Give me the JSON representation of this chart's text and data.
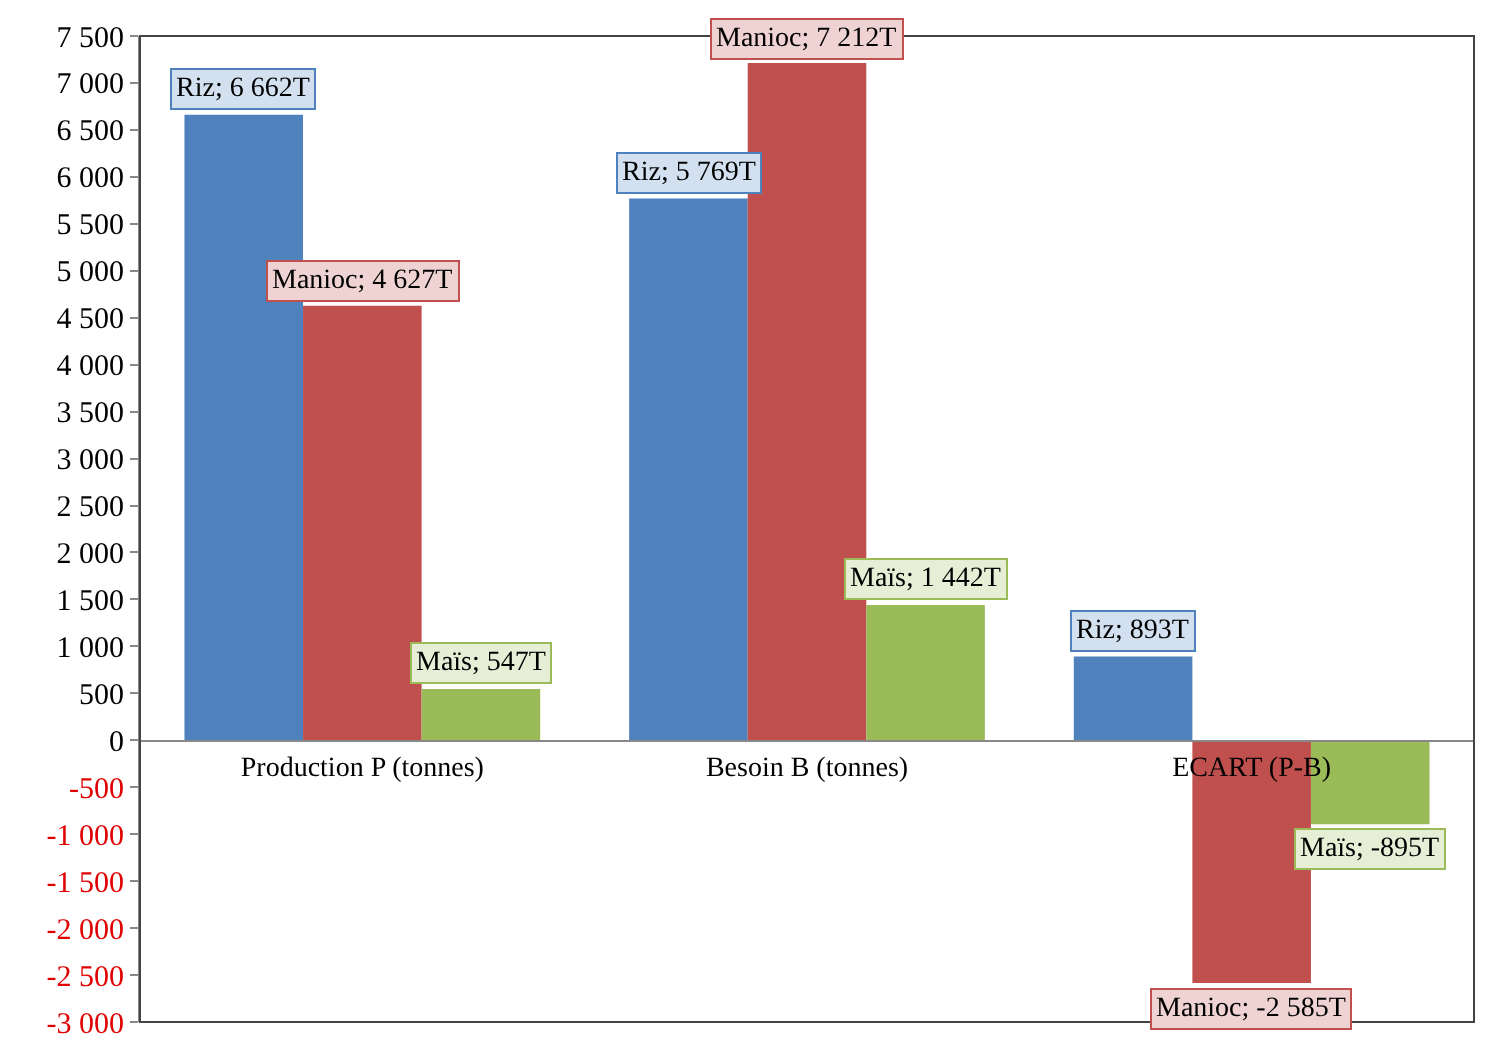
{
  "chart_data": {
    "type": "bar",
    "categories": [
      "Production P (tonnes)",
      "Besoin B (tonnes)",
      "ECART (P-B)"
    ],
    "series": [
      {
        "color": "#4f81bd",
        "values": [
          6662,
          5769,
          893
        ],
        "value_labels": [
          "Riz; 6 662T",
          "Riz; 5 769T",
          "Riz; 893T"
        ]
      },
      {
        "color": "#c0504d",
        "values": [
          4627,
          7212,
          -2585
        ],
        "value_labels": [
          "Manioc; 4 627T",
          "Manioc; 7 212T",
          "Manioc; -2 585T"
        ]
      },
      {
        "color": "#9bbb59",
        "values": [
          547,
          1442,
          -895
        ],
        "value_labels": [
          "Maïs; 547T",
          "Maïs; 1 442T",
          "Maïs; -895T"
        ]
      }
    ],
    "ylim": [
      -3000,
      7500
    ],
    "yticks": [
      {
        "value": -3000,
        "label": "-3 000"
      },
      {
        "value": -2500,
        "label": "-2 500"
      },
      {
        "value": -2000,
        "label": "-2 000"
      },
      {
        "value": -1500,
        "label": "-1 500"
      },
      {
        "value": -1000,
        "label": "-1 000"
      },
      {
        "value": -500,
        "label": "-500"
      },
      0,
      500,
      {
        "value": 1000,
        "label": "1 000"
      },
      {
        "value": 1500,
        "label": "1 500"
      },
      {
        "value": 2000,
        "label": "2 000"
      },
      {
        "value": 2500,
        "label": "2 500"
      },
      {
        "value": 3000,
        "label": "3 000"
      },
      {
        "value": 3500,
        "label": "3 500"
      },
      {
        "value": 4000,
        "label": "4 000"
      },
      {
        "value": 4500,
        "label": "4 500"
      },
      {
        "value": 5000,
        "label": "5 000"
      },
      {
        "value": 5500,
        "label": "5 500"
      },
      {
        "value": 6000,
        "label": "6 000"
      },
      {
        "value": 6500,
        "label": "6 500"
      },
      {
        "value": 7000,
        "label": "7 000"
      },
      {
        "value": 7500,
        "label": "7 500"
      }
    ],
    "grid": false,
    "legend": false
  }
}
